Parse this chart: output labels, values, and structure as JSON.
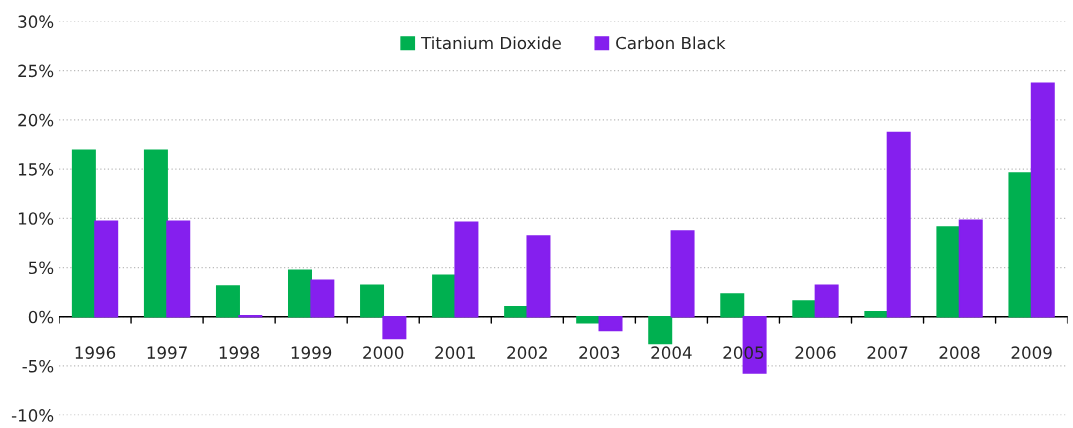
{
  "chart_data": {
    "type": "bar",
    "categories": [
      "1996",
      "1997",
      "1998",
      "1999",
      "2000",
      "2001",
      "2002",
      "2003",
      "2004",
      "2005",
      "2006",
      "2007",
      "2008",
      "2009"
    ],
    "series": [
      {
        "name": "Titanium Dioxide",
        "color": "#00b050",
        "values": [
          16.9,
          16.9,
          3.1,
          4.7,
          3.2,
          4.2,
          1.0,
          -0.6,
          -2.7,
          2.3,
          1.6,
          0.5,
          9.1,
          14.6
        ]
      },
      {
        "name": "Carbon Black",
        "color": "#851fee",
        "values": [
          9.7,
          9.7,
          0.1,
          3.7,
          -2.2,
          9.6,
          8.2,
          -1.4,
          8.7,
          -5.7,
          3.2,
          18.7,
          9.8,
          23.7
        ]
      }
    ],
    "ylim": [
      -10,
      30
    ],
    "yticks": [
      {
        "value": -10,
        "label": "-10%"
      },
      {
        "value": -5,
        "label": "-5%"
      },
      {
        "value": 0,
        "label": "0%"
      },
      {
        "value": 5,
        "label": "5%"
      },
      {
        "value": 10,
        "label": "10%"
      },
      {
        "value": 15,
        "label": "15%"
      },
      {
        "value": 20,
        "label": "20%"
      },
      {
        "value": 25,
        "label": "25%"
      },
      {
        "value": 30,
        "label": "30%"
      }
    ],
    "grid": "y",
    "legend": "top"
  }
}
